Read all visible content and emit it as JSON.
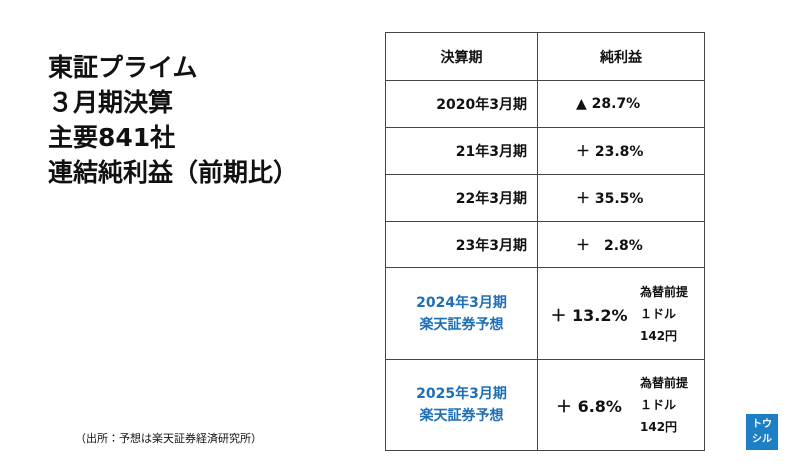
{
  "title_lines": [
    "東証プライム",
    "３月期決算",
    "主要841社",
    "連結純利益（前期比）"
  ],
  "table": {
    "header": [
      "決算期",
      "純利益"
    ],
    "rows": [
      {
        "period": [
          "2020年3月期"
        ],
        "profit": "▲ 28.7%"
      },
      {
        "period": [
          "21年3月期"
        ],
        "profit": "＋ 23.8%"
      },
      {
        "period": [
          "22年3月期"
        ],
        "profit": "＋ 35.5%"
      },
      {
        "period": [
          "23年3月期"
        ],
        "profit": "＋　2.8%"
      },
      {
        "period": [
          "2024年3月期",
          "楽天証券予想"
        ],
        "profit": "＋ 13.2%",
        "assumption": [
          "為替前提",
          "１ドル",
          "142円"
        ]
      },
      {
        "period": [
          "2025年3月期",
          "楽天証券予想"
        ],
        "profit": "＋ 6.8%",
        "assumption": [
          "為替前提",
          "１ドル",
          "142円"
        ]
      }
    ]
  },
  "footnote": "（出所：予想は楽天証券経済研究所）",
  "logo": [
    "トウ",
    "シル"
  ]
}
